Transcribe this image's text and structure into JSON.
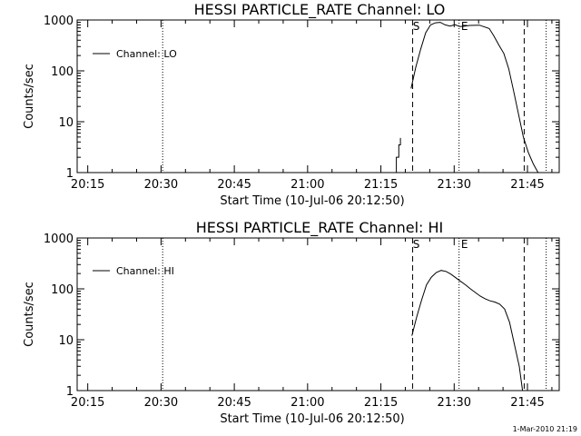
{
  "chart_data": [
    {
      "type": "line",
      "title": "HESSI PARTICLE_RATE Channel: LO",
      "xlabel": "Start Time (10-Jul-06 20:12:50)",
      "ylabel": "Counts/sec",
      "yscale": "log",
      "ylim": [
        1,
        1000
      ],
      "xlim": [
        "20:12:50",
        "21:51:30"
      ],
      "x_ticks": [
        "20:15",
        "20:30",
        "20:45",
        "21:00",
        "21:15",
        "21:30",
        "21:45"
      ],
      "y_ticks": [
        "1",
        "10",
        "100",
        "1000"
      ],
      "grid": false,
      "legend_position": "top-left",
      "series": [
        {
          "name": "Channel: LO",
          "x": [
            "21:18:10",
            "21:18:10",
            "21:18:40",
            "21:18:40",
            "21:19:00",
            "21:19:00"
          ],
          "y": [
            1,
            2.0,
            2.0,
            3.5,
            3.5,
            4.8
          ]
        },
        {
          "name": "Channel: LO",
          "x": [
            "21:21:10",
            "21:22:10",
            "21:23:10",
            "21:24:10",
            "21:25:10",
            "21:26:10",
            "21:27:10",
            "21:28:10",
            "21:29:10",
            "21:30:10",
            "21:31:10",
            "21:32:10",
            "21:33:10",
            "21:35:10",
            "21:37:10",
            "21:38:10",
            "21:39:10",
            "21:40:10",
            "21:41:10",
            "21:42:10",
            "21:43:10",
            "21:44:10",
            "21:45:10",
            "21:46:10",
            "21:47:10"
          ],
          "y": [
            45,
            120,
            270,
            560,
            800,
            880,
            900,
            800,
            760,
            810,
            740,
            760,
            780,
            790,
            680,
            480,
            320,
            220,
            110,
            40,
            14,
            5,
            2.5,
            1.5,
            1
          ]
        }
      ],
      "markers": [
        {
          "label": "S",
          "time": "21:21:30",
          "style": "dashed"
        },
        {
          "label": "E",
          "time": "21:31:00",
          "style": "dotted"
        }
      ],
      "extra_lines": [
        {
          "time": "20:30:20",
          "style": "dotted"
        },
        {
          "time": "21:44:20",
          "style": "dashed"
        },
        {
          "time": "21:48:50",
          "style": "dotted"
        }
      ]
    },
    {
      "type": "line",
      "title": "HESSI PARTICLE_RATE Channel: HI",
      "xlabel": "Start Time (10-Jul-06 20:12:50)",
      "ylabel": "Counts/sec",
      "yscale": "log",
      "ylim": [
        1,
        1000
      ],
      "xlim": [
        "20:12:50",
        "21:51:30"
      ],
      "x_ticks": [
        "20:15",
        "20:30",
        "20:45",
        "21:00",
        "21:15",
        "21:30",
        "21:45"
      ],
      "y_ticks": [
        "1",
        "10",
        "100",
        "1000"
      ],
      "grid": false,
      "legend_position": "top-left",
      "series": [
        {
          "name": "Channel: HI",
          "x": [
            "21:21:20",
            "21:22:20",
            "21:23:20",
            "21:24:20",
            "21:25:20",
            "21:26:20",
            "21:27:20",
            "21:28:20",
            "21:29:20",
            "21:30:20",
            "21:31:20",
            "21:32:20",
            "21:33:20",
            "21:34:20",
            "21:35:20",
            "21:36:20",
            "21:37:20",
            "21:38:20",
            "21:39:20",
            "21:40:20",
            "21:41:20",
            "21:42:20",
            "21:43:20",
            "21:44:00"
          ],
          "y": [
            12,
            28,
            60,
            120,
            170,
            210,
            230,
            220,
            195,
            165,
            140,
            120,
            100,
            85,
            72,
            64,
            58,
            55,
            50,
            40,
            22,
            8,
            3,
            1
          ]
        }
      ],
      "markers": [
        {
          "label": "S",
          "time": "21:21:30",
          "style": "dashed"
        },
        {
          "label": "E",
          "time": "21:31:00",
          "style": "dotted"
        }
      ],
      "extra_lines": [
        {
          "time": "20:30:20",
          "style": "dotted"
        },
        {
          "time": "21:44:20",
          "style": "dashed"
        },
        {
          "time": "21:48:50",
          "style": "dotted"
        }
      ]
    }
  ],
  "footer": {
    "stamp": "1-Mar-2010 21:19"
  },
  "colors": {
    "background": "#ffffff",
    "ink": "#000000"
  }
}
